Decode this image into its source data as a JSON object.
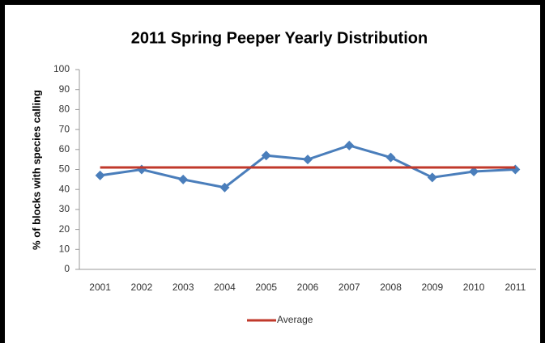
{
  "chart_data": {
    "type": "line",
    "title": "2011 Spring Peeper Yearly Distribution",
    "y_label": "% of blocks with species calling",
    "categories": [
      "2001",
      "2002",
      "2003",
      "2004",
      "2005",
      "2006",
      "2007",
      "2008",
      "2009",
      "2010",
      "2011"
    ],
    "series": [
      {
        "color": "#4a7ebb",
        "markers": true,
        "values": [
          47,
          50,
          45,
          41,
          57,
          55,
          62,
          56,
          46,
          49,
          50
        ]
      },
      {
        "name": "Average",
        "color": "#c0392b",
        "markers": false,
        "values": [
          51,
          51,
          51,
          51,
          51,
          51,
          51,
          51,
          51,
          51,
          51
        ]
      }
    ],
    "ylim": [
      0,
      100
    ],
    "yticks": [
      0,
      10,
      20,
      30,
      40,
      50,
      60,
      70,
      80,
      90,
      100
    ],
    "legend": "bottom"
  }
}
